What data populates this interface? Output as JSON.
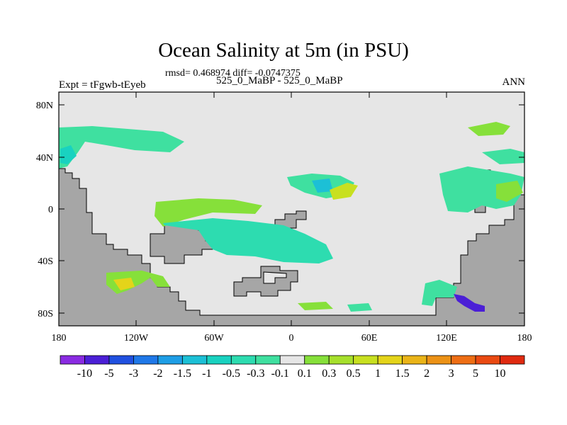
{
  "title": "Ocean Salinity at 5m (in PSU)",
  "stats_line": "rmsd= 0.468974 diff= -0.0747375",
  "left_label": "Expt = tFgwb-tEyeb",
  "center_label": "525_0_MaBP - 525_0_MaBP",
  "right_label": "ANN",
  "y_ticks": [
    "80N",
    "40N",
    "0",
    "40S",
    "80S"
  ],
  "x_ticks": [
    "180",
    "120W",
    "60W",
    "0",
    "60E",
    "120E",
    "180"
  ],
  "colorbar": {
    "labels": [
      "-10",
      "-5",
      "-3",
      "-2",
      "-1.5",
      "-1",
      "-0.5",
      "-0.3",
      "-0.1",
      "0.1",
      "0.3",
      "0.5",
      "1",
      "1.5",
      "2",
      "3",
      "5",
      "10"
    ],
    "colors": [
      "#8a2be2",
      "#4b1fd6",
      "#2050e0",
      "#1f78e8",
      "#1e9ee6",
      "#1cc0d6",
      "#19d2c0",
      "#2ddcb0",
      "#3fe0a0",
      "#e6e6e6",
      "#86e03a",
      "#a6e02c",
      "#c8e020",
      "#e4d41a",
      "#eab418",
      "#ec9216",
      "#ee6e14",
      "#ea4a12",
      "#e02a10"
    ],
    "land_color": "#a6a6a6",
    "ocean_neutral_color": "#e6e6e6"
  }
}
